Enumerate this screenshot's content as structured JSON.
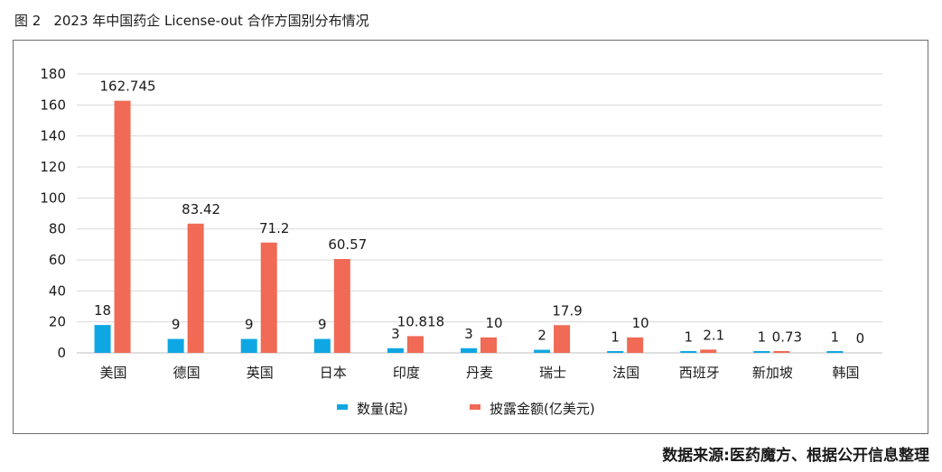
{
  "figure": {
    "number": "图 2",
    "title": "2023 年中国药企 License-out 合作方国别分布情况"
  },
  "source": "数据来源:医药魔方、根据公开信息整理",
  "colors": {
    "series_count": "#0fa7e3",
    "series_amount": "#f06a55",
    "grid": "#d9d9d9",
    "axis": "#bfbfbf",
    "text": "#1a1a1a"
  },
  "chart_data": {
    "type": "bar",
    "categories": [
      "美国",
      "德国",
      "英国",
      "日本",
      "印度",
      "丹麦",
      "瑞士",
      "法国",
      "西班牙",
      "新加坡",
      "韩国"
    ],
    "series": [
      {
        "name": "数量(起)",
        "values": [
          18,
          9,
          9,
          9,
          3,
          3,
          2,
          1,
          1,
          1,
          1
        ],
        "labels": [
          "18",
          "9",
          "9",
          "9",
          "3",
          "3",
          "2",
          "1",
          "1",
          "1",
          "1"
        ]
      },
      {
        "name": "披露金额(亿美元)",
        "values": [
          162.745,
          83.42,
          71.2,
          60.57,
          10.818,
          10,
          17.9,
          10,
          2.1,
          0.73,
          0
        ],
        "labels": [
          "162.745",
          "83.42",
          "71.2",
          "60.57",
          "10.818",
          "10",
          "17.9",
          "10",
          "2.1",
          "0.73",
          "0"
        ]
      }
    ],
    "y_ticks": [
      "0",
      "20",
      "40",
      "60",
      "80",
      "100",
      "120",
      "140",
      "160",
      "180"
    ],
    "ylim": [
      0,
      180
    ],
    "grid": true,
    "legend_position": "bottom-center"
  }
}
